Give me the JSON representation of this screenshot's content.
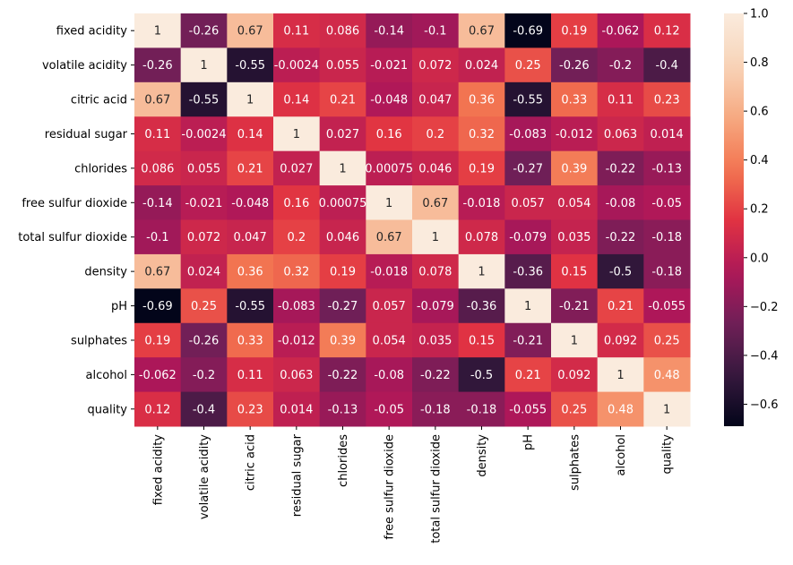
{
  "chart_data": {
    "type": "heatmap",
    "title": "",
    "labels": [
      "fixed acidity",
      "volatile acidity",
      "citric acid",
      "residual sugar",
      "chlorides",
      "free sulfur dioxide",
      "total sulfur dioxide",
      "density",
      "pH",
      "sulphates",
      "alcohol",
      "quality"
    ],
    "values": [
      [
        1,
        -0.26,
        0.67,
        0.11,
        0.086,
        -0.14,
        -0.1,
        0.67,
        -0.69,
        0.19,
        -0.062,
        0.12
      ],
      [
        -0.26,
        1,
        -0.55,
        -0.0024,
        0.055,
        -0.021,
        0.072,
        0.024,
        0.25,
        -0.26,
        -0.2,
        -0.4
      ],
      [
        0.67,
        -0.55,
        1,
        0.14,
        0.21,
        -0.048,
        0.047,
        0.36,
        -0.55,
        0.33,
        0.11,
        0.23
      ],
      [
        0.11,
        -0.0024,
        0.14,
        1,
        0.027,
        0.16,
        0.2,
        0.32,
        -0.083,
        -0.012,
        0.063,
        0.014
      ],
      [
        0.086,
        0.055,
        0.21,
        0.027,
        1,
        0.00075,
        0.046,
        0.19,
        -0.27,
        0.39,
        -0.22,
        -0.13
      ],
      [
        -0.14,
        -0.021,
        -0.048,
        0.16,
        0.00075,
        1,
        0.67,
        -0.018,
        0.057,
        0.054,
        -0.08,
        -0.05
      ],
      [
        -0.1,
        0.072,
        0.047,
        0.2,
        0.046,
        0.67,
        1,
        0.078,
        -0.079,
        0.035,
        -0.22,
        -0.18
      ],
      [
        0.67,
        0.024,
        0.36,
        0.32,
        0.19,
        -0.018,
        0.078,
        1,
        -0.36,
        0.15,
        -0.5,
        -0.18
      ],
      [
        -0.69,
        0.25,
        -0.55,
        -0.083,
        -0.27,
        0.057,
        -0.079,
        -0.36,
        1,
        -0.21,
        0.21,
        -0.055
      ],
      [
        0.19,
        -0.26,
        0.33,
        -0.012,
        0.39,
        0.054,
        0.035,
        0.15,
        -0.21,
        1,
        0.092,
        0.25
      ],
      [
        -0.062,
        -0.2,
        0.11,
        0.063,
        -0.22,
        -0.08,
        -0.22,
        -0.5,
        0.21,
        0.092,
        1,
        0.48
      ],
      [
        0.12,
        -0.4,
        0.23,
        0.014,
        -0.13,
        -0.05,
        -0.18,
        -0.18,
        -0.055,
        0.25,
        0.48,
        1
      ]
    ],
    "colormap": "rocket",
    "vmin": -0.69,
    "vmax": 1,
    "colorbar_ticks": [
      "-0.6",
      "-0.4",
      "-0.2",
      "0.0",
      "0.2",
      "0.4",
      "0.6",
      "0.8",
      "1.0"
    ],
    "annotated": true,
    "grid": false
  }
}
